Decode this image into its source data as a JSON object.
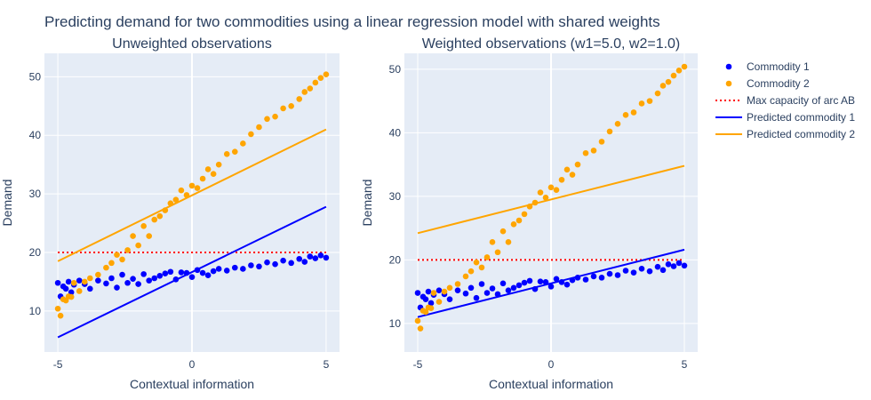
{
  "title": "Predicting demand for two commodities using a linear regression model with shared weights",
  "colors": {
    "commodity1": "#0000ff",
    "commodity2": "#ffa500",
    "capacity": "#ff0000",
    "plot_bg": "#e5ecf6",
    "grid": "#ffffff",
    "text": "#2a3f5f"
  },
  "legend": {
    "placement": "right",
    "items": [
      {
        "label": "Commodity 1",
        "kind": "marker",
        "color": "#0000ff"
      },
      {
        "label": "Commodity 2",
        "kind": "marker",
        "color": "#ffa500"
      },
      {
        "label": "Max capacity of arc AB",
        "kind": "dotted",
        "color": "#ff0000"
      },
      {
        "label": "Predicted commodity 1",
        "kind": "line",
        "color": "#0000ff"
      },
      {
        "label": "Predicted commodity 2",
        "kind": "line",
        "color": "#ffa500"
      }
    ]
  },
  "chart_data": [
    {
      "type": "scatter",
      "subtitle": "Unweighted observations",
      "xlabel": "Contextual information",
      "ylabel": "Demand",
      "xlim": [
        -5.5,
        5.5
      ],
      "ylim": [
        3,
        54
      ],
      "xticks": [
        -5,
        0,
        5
      ],
      "yticks": [
        10,
        20,
        30,
        40,
        50
      ],
      "grid": true,
      "series": [
        {
          "name": "Commodity 1",
          "mode": "markers",
          "x": [
            -5.0,
            -4.9,
            -4.8,
            -4.7,
            -4.6,
            -4.5,
            -4.4,
            -4.2,
            -4.0,
            -3.8,
            -3.5,
            -3.2,
            -3.0,
            -2.8,
            -2.6,
            -2.4,
            -2.2,
            -2.0,
            -1.8,
            -1.6,
            -1.4,
            -1.2,
            -1.0,
            -0.8,
            -0.6,
            -0.4,
            -0.2,
            0.0,
            0.2,
            0.4,
            0.6,
            0.8,
            1.0,
            1.3,
            1.6,
            1.9,
            2.2,
            2.5,
            2.8,
            3.1,
            3.4,
            3.7,
            4.0,
            4.2,
            4.4,
            4.6,
            4.8,
            5.0
          ],
          "y": [
            14.8,
            12.5,
            14.2,
            13.8,
            15.0,
            13.2,
            14.5,
            15.2,
            14.6,
            13.8,
            15.2,
            14.7,
            15.6,
            14.0,
            16.2,
            14.8,
            15.5,
            14.6,
            16.3,
            15.2,
            15.6,
            16.0,
            16.4,
            16.7,
            15.4,
            16.6,
            16.5,
            15.8,
            17.0,
            16.5,
            16.1,
            16.8,
            17.2,
            16.9,
            17.4,
            17.2,
            17.8,
            17.6,
            18.3,
            18.0,
            18.6,
            18.2,
            18.9,
            18.4,
            19.3,
            19.0,
            19.5,
            19.1
          ]
        },
        {
          "name": "Commodity 2",
          "mode": "markers",
          "x": [
            -5.0,
            -4.9,
            -4.8,
            -4.7,
            -4.6,
            -4.5,
            -4.4,
            -4.2,
            -4.0,
            -3.8,
            -3.5,
            -3.2,
            -3.0,
            -2.8,
            -2.6,
            -2.4,
            -2.2,
            -2.0,
            -1.8,
            -1.6,
            -1.4,
            -1.2,
            -1.0,
            -0.8,
            -0.6,
            -0.4,
            -0.2,
            0.0,
            0.2,
            0.4,
            0.6,
            0.8,
            1.0,
            1.3,
            1.6,
            1.9,
            2.2,
            2.5,
            2.8,
            3.1,
            3.4,
            3.7,
            4.0,
            4.2,
            4.4,
            4.6,
            4.8,
            5.0
          ],
          "y": [
            10.4,
            9.2,
            12.0,
            11.8,
            12.5,
            12.4,
            14.8,
            13.4,
            15.0,
            15.6,
            16.2,
            17.4,
            18.2,
            19.6,
            18.8,
            20.4,
            22.8,
            21.2,
            24.5,
            22.8,
            25.6,
            26.2,
            27.2,
            28.4,
            29.0,
            30.6,
            29.8,
            31.4,
            31.0,
            32.6,
            34.2,
            33.4,
            35.0,
            36.8,
            37.2,
            38.6,
            40.2,
            41.4,
            42.8,
            43.2,
            44.6,
            45.0,
            46.2,
            47.4,
            48.0,
            49.0,
            49.8,
            50.4
          ]
        },
        {
          "name": "Max capacity of arc AB",
          "mode": "dotted",
          "x": [
            -5,
            5
          ],
          "y": [
            20,
            20
          ]
        },
        {
          "name": "Predicted commodity 1",
          "mode": "line",
          "x": [
            -5,
            5
          ],
          "y": [
            5.5,
            27.8
          ]
        },
        {
          "name": "Predicted commodity 2",
          "mode": "line",
          "x": [
            -5,
            5
          ],
          "y": [
            18.5,
            41.0
          ]
        }
      ]
    },
    {
      "type": "scatter",
      "subtitle": "Weighted observations (w1=5.0, w2=1.0)",
      "xlabel": "Contextual information",
      "ylabel": "Demand",
      "xlim": [
        -5.5,
        5.5
      ],
      "ylim": [
        5.5,
        52.5
      ],
      "xticks": [
        -5,
        0,
        5
      ],
      "yticks": [
        10,
        20,
        30,
        40,
        50
      ],
      "grid": true,
      "series": [
        {
          "name": "Commodity 1",
          "mode": "markers",
          "x": [
            -5.0,
            -4.9,
            -4.8,
            -4.7,
            -4.6,
            -4.5,
            -4.4,
            -4.2,
            -4.0,
            -3.8,
            -3.5,
            -3.2,
            -3.0,
            -2.8,
            -2.6,
            -2.4,
            -2.2,
            -2.0,
            -1.8,
            -1.6,
            -1.4,
            -1.2,
            -1.0,
            -0.8,
            -0.6,
            -0.4,
            -0.2,
            0.0,
            0.2,
            0.4,
            0.6,
            0.8,
            1.0,
            1.3,
            1.6,
            1.9,
            2.2,
            2.5,
            2.8,
            3.1,
            3.4,
            3.7,
            4.0,
            4.2,
            4.4,
            4.6,
            4.8,
            5.0
          ],
          "y": [
            14.8,
            12.5,
            14.2,
            13.8,
            15.0,
            13.2,
            14.5,
            15.2,
            14.6,
            13.8,
            15.2,
            14.7,
            15.6,
            14.0,
            16.2,
            14.8,
            15.5,
            14.6,
            16.3,
            15.2,
            15.6,
            16.0,
            16.4,
            16.7,
            15.4,
            16.6,
            16.5,
            15.8,
            17.0,
            16.5,
            16.1,
            16.8,
            17.2,
            16.9,
            17.4,
            17.2,
            17.8,
            17.6,
            18.3,
            18.0,
            18.6,
            18.2,
            18.9,
            18.4,
            19.3,
            19.0,
            19.5,
            19.1
          ]
        },
        {
          "name": "Commodity 2",
          "mode": "markers",
          "x": [
            -5.0,
            -4.9,
            -4.8,
            -4.7,
            -4.6,
            -4.5,
            -4.4,
            -4.2,
            -4.0,
            -3.8,
            -3.5,
            -3.2,
            -3.0,
            -2.8,
            -2.6,
            -2.4,
            -2.2,
            -2.0,
            -1.8,
            -1.6,
            -1.4,
            -1.2,
            -1.0,
            -0.8,
            -0.6,
            -0.4,
            -0.2,
            0.0,
            0.2,
            0.4,
            0.6,
            0.8,
            1.0,
            1.3,
            1.6,
            1.9,
            2.2,
            2.5,
            2.8,
            3.1,
            3.4,
            3.7,
            4.0,
            4.2,
            4.4,
            4.6,
            4.8,
            5.0
          ],
          "y": [
            10.4,
            9.2,
            12.0,
            11.8,
            12.5,
            12.4,
            14.8,
            13.4,
            15.0,
            15.6,
            16.2,
            17.4,
            18.2,
            19.6,
            18.8,
            20.4,
            22.8,
            21.2,
            24.5,
            22.8,
            25.6,
            26.2,
            27.2,
            28.4,
            29.0,
            30.6,
            29.8,
            31.4,
            31.0,
            32.6,
            34.2,
            33.4,
            35.0,
            36.8,
            37.2,
            38.6,
            40.2,
            41.4,
            42.8,
            43.2,
            44.6,
            45.0,
            46.2,
            47.4,
            48.0,
            49.0,
            49.8,
            50.4
          ]
        },
        {
          "name": "Max capacity of arc AB",
          "mode": "dotted",
          "x": [
            -5,
            5
          ],
          "y": [
            20,
            20
          ]
        },
        {
          "name": "Predicted commodity 1",
          "mode": "line",
          "x": [
            -5,
            5
          ],
          "y": [
            11.0,
            21.6
          ]
        },
        {
          "name": "Predicted commodity 2",
          "mode": "line",
          "x": [
            -5,
            5
          ],
          "y": [
            24.2,
            34.8
          ]
        }
      ]
    }
  ]
}
